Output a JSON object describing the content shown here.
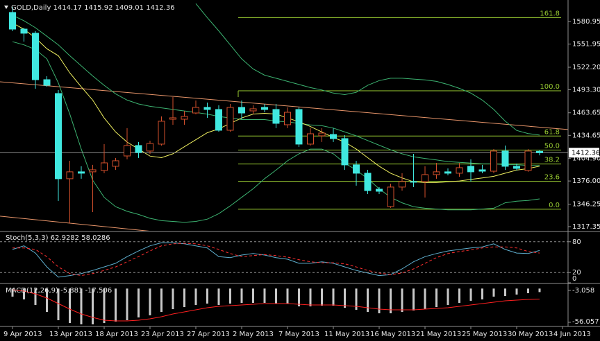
{
  "chart_data": [
    {
      "type": "candlestick",
      "title": "GOLD,Daily",
      "categories": [
        "9 Apr 2013",
        null,
        null,
        null,
        "13 Apr 2013",
        null,
        null,
        null,
        "18 Apr 2013",
        null,
        null,
        null,
        "23 Apr 2013",
        null,
        null,
        null,
        "27 Apr 2013",
        null,
        null,
        null,
        "2 May 2013",
        null,
        null,
        null,
        "7 May 2013",
        null,
        null,
        null,
        "11 May 2013",
        null,
        null,
        null,
        "16 May 2013",
        null,
        null,
        null,
        "21 May 2013",
        null,
        null,
        null,
        "25 May 2013",
        null,
        null,
        null,
        "30 May 2013",
        null,
        null,
        null,
        "4 Jun 2013"
      ],
      "open": [
        1592.6,
        1571.2,
        1565.9,
        1506.2,
        1488.4,
        1378.9,
        1387.8,
        1387.8,
        1389.5,
        1394.9,
        1408.2,
        1421.6,
        1414.5,
        1423.4,
        1455.4,
        1455.4,
        1463.4,
        1470.6,
        1467.9,
        1441.2,
        1470.6,
        1466.1,
        1470.6,
        1467.9,
        1448.3,
        1467.9,
        1423.4,
        1434.1,
        1435.8,
        1430.5,
        1396.7,
        1386.0,
        1365.5,
        1343.2,
        1368.2,
        1375.3,
        1375.3,
        1384.2,
        1387.8,
        1386.0,
        1394.9,
        1390.4,
        1388.6,
        1414.5,
        1394.9,
        1389.5,
        1414.17,
        null,
        null
      ],
      "high": [
        1599.7,
        1573.0,
        1568.5,
        1510.6,
        1492.8,
        1402.0,
        1394.9,
        1396.7,
        1423.4,
        1405.6,
        1443.9,
        1426.1,
        1427.8,
        1459.0,
        1483.9,
        1466.1,
        1479.5,
        1476.8,
        1473.2,
        1475.0,
        1479.5,
        1473.2,
        1475.0,
        1475.0,
        1470.6,
        1470.6,
        1443.9,
        1443.9,
        1443.9,
        1434.9,
        1402.0,
        1390.4,
        1368.2,
        1372.6,
        1386.0,
        1410.9,
        1394.9,
        1399.3,
        1392.2,
        1399.3,
        1403.8,
        1396.7,
        1417.1,
        1421.6,
        1398.4,
        1417.1,
        1415.92,
        null,
        null
      ],
      "low": [
        1568.5,
        1555.2,
        1494.6,
        1497.3,
        1350.4,
        1321.9,
        1378.9,
        1336.1,
        1386.0,
        1390.4,
        1403.8,
        1405.6,
        1410.9,
        1421.6,
        1448.3,
        1448.3,
        1461.7,
        1457.2,
        1439.4,
        1439.4,
        1455.4,
        1461.7,
        1464.3,
        1443.9,
        1443.9,
        1419.8,
        1421.6,
        1426.1,
        1426.1,
        1390.4,
        1370.0,
        1359.2,
        1359.2,
        1341.5,
        1363.7,
        1368.2,
        1354.8,
        1378.9,
        1383.3,
        1381.5,
        1375.3,
        1386.0,
        1386.0,
        1390.4,
        1389.5,
        1387.8,
        1409.01,
        null,
        null
      ],
      "close": [
        1571.2,
        1565.9,
        1506.2,
        1499.1,
        1378.9,
        1387.8,
        1386.0,
        1390.4,
        1399.3,
        1402.0,
        1421.6,
        1412.7,
        1424.3,
        1452.8,
        1457.2,
        1459.0,
        1470.6,
        1467.9,
        1441.2,
        1470.6,
        1463.4,
        1468.8,
        1467.9,
        1450.1,
        1464.3,
        1423.4,
        1436.7,
        1437.6,
        1430.5,
        1396.7,
        1386.0,
        1363.7,
        1362.8,
        1368.2,
        1375.3,
        1374.4,
        1384.2,
        1387.8,
        1386.0,
        1393.1,
        1387.8,
        1388.6,
        1414.5,
        1394.9,
        1392.2,
        1414.5,
        1412.36,
        null,
        null
      ],
      "up_color": "#d4502c",
      "down_color": "#40e8e0",
      "series": [
        {
          "color": "#3cb371",
          "values": [
            null,
            null,
            null,
            null,
            null,
            null,
            null,
            null,
            null,
            null,
            null,
            null,
            null,
            null,
            null,
            null,
            1604,
            1586,
            1569,
            1551,
            1533,
            1520,
            1512,
            1508,
            1504,
            1500,
            1496,
            1493,
            1489,
            1487,
            1490,
            1499,
            1505,
            1508,
            1508,
            1507,
            1506,
            1504,
            1500,
            1495,
            1489,
            1480,
            1468,
            1453,
            1441,
            1437,
            1435,
            null,
            null
          ]
        },
        {
          "color": "#3cb371",
          "values": [
            1589,
            1582,
            1573,
            1562,
            1551,
            1537,
            1524,
            1511,
            1499,
            1488,
            1480,
            1475,
            1472,
            1470,
            1468,
            1466,
            1464,
            1462,
            1459,
            1457,
            1455,
            1455,
            1455,
            1453,
            1452,
            1450,
            1448,
            1447,
            1444,
            1439,
            1434,
            1428,
            1422,
            1416,
            1411,
            1407,
            1405,
            1403,
            1401,
            1400,
            1399,
            1398,
            1398,
            1397,
            1397,
            1396,
            1396,
            null,
            null
          ]
        },
        {
          "color": "#3cb371",
          "values": [
            1555,
            1551,
            1545,
            1533,
            1502,
            1462,
            1417,
            1377,
            1355,
            1343,
            1337,
            1333,
            1328,
            1325,
            1324,
            1323,
            1324,
            1327,
            1334,
            1344,
            1355,
            1366,
            1379,
            1390,
            1402,
            1411,
            1417,
            1417,
            1411,
            1399,
            1390,
            1379,
            1366,
            1355,
            1348,
            1343,
            1341,
            1340,
            1339,
            1339,
            1339,
            1340,
            1341,
            1348,
            1350,
            1351,
            1353,
            null,
            null
          ]
        },
        {
          "color": "#f0f060",
          "values": [
            1579,
            1571,
            1560,
            1546,
            1537,
            1515,
            1497,
            1480,
            1457,
            1439,
            1426,
            1417,
            1408,
            1406,
            1411,
            1420,
            1429,
            1438,
            1443,
            1450,
            1457,
            1462,
            1463,
            1462,
            1457,
            1452,
            1446,
            1439,
            1432,
            1426,
            1417,
            1406,
            1395,
            1386,
            1380,
            1375,
            1374,
            1374,
            1375,
            1376,
            1378,
            1380,
            1382,
            1386,
            1390,
            1392,
            1395,
            null,
            null
          ]
        }
      ],
      "trendlines": [
        {
          "color": "#e8956a",
          "values": [
            1503.5,
            1442.1
          ]
        },
        {
          "color": "#e8956a",
          "values": [
            1330.8,
            1257.6
          ]
        }
      ],
      "fibo": {
        "color": "#9acd32",
        "low": 1339.7,
        "high": 1491.9,
        "levels": [
          161.8,
          {
            "value": 100,
            "label": "100.0"
          },
          61.8,
          {
            "value": 50,
            "label": "50.0"
          },
          38.2,
          23.6,
          {
            "value": 0,
            "label": "0.0"
          }
        ]
      },
      "ylim": [
        1312,
        1608.6
      ],
      "yticks": [
        1580.95,
        1551.95,
        {
          "value": 1522.2,
          "label": "1522.20"
        },
        {
          "value": 1493.3,
          "label": "1493.30"
        },
        1463.65,
        1434.65,
        {
          "value": 1404.9,
          "label": "1404.90"
        },
        {
          "value": 1376,
          "label": "1376.00"
        },
        1346.25,
        1317.35
      ]
    },
    {
      "type": "line",
      "title": "Stoch(5,3,3)",
      "series": [
        {
          "color": "#5fb0d0",
          "values": [
            65,
            72,
            58,
            31,
            11,
            14,
            18,
            24,
            31,
            38,
            51,
            62,
            72,
            78,
            78,
            76,
            72,
            68,
            51,
            49,
            54,
            57,
            54,
            49,
            46,
            38,
            38,
            41,
            38,
            31,
            24,
            19,
            14,
            16,
            27,
            41,
            51,
            57,
            62,
            65,
            68,
            70,
            76,
            65,
            58,
            57,
            62.9282
          ]
        },
        {
          "color": "#ff3030",
          "dashed": true,
          "values": [
            68,
            68,
            65,
            51,
            31,
            18,
            14,
            18,
            24,
            31,
            41,
            51,
            62,
            72,
            76,
            77,
            76,
            72,
            65,
            57,
            51,
            53,
            55,
            53,
            50,
            45,
            41,
            39,
            39,
            37,
            31,
            24,
            19,
            16,
            19,
            27,
            38,
            49,
            57,
            61,
            64,
            68,
            70,
            70,
            68,
            61,
            58.0286
          ]
        }
      ],
      "ylim": [
        0,
        100
      ],
      "yticks": [
        80,
        20,
        0
      ]
    },
    {
      "type": "macd",
      "title": "MACD(12,26,9)",
      "values": [
        -13.4,
        -18.0,
        -27.2,
        -38.8,
        -52.6,
        -57.2,
        -59.5,
        -59.5,
        -57.2,
        -54.9,
        -52.6,
        -48.0,
        -44.5,
        -38.8,
        -34.2,
        -30.7,
        -27.2,
        -25.0,
        -27.2,
        -25.0,
        -23.8,
        -23.8,
        -23.8,
        -25.0,
        -25.0,
        -29.6,
        -29.6,
        -28.4,
        -28.4,
        -31.9,
        -35.3,
        -38.8,
        -41.1,
        -41.1,
        -38.8,
        -36.5,
        -34.2,
        -30.7,
        -27.2,
        -23.8,
        -20.3,
        -18.0,
        -13.4,
        -12.3,
        -10.0,
        -7.7,
        -5.881
      ],
      "color": "#c8c8c8",
      "signal": {
        "color": "#ff2020",
        "values": [
          -1.9,
          -4.2,
          -8.8,
          -15.7,
          -25.0,
          -34.2,
          -42.2,
          -48.0,
          -52.6,
          -53.7,
          -53.7,
          -52.6,
          -50.3,
          -46.8,
          -42.2,
          -38.8,
          -35.3,
          -31.9,
          -29.6,
          -28.4,
          -27.2,
          -26.1,
          -25.0,
          -25.0,
          -25.0,
          -26.1,
          -27.2,
          -27.2,
          -27.2,
          -28.4,
          -29.6,
          -31.9,
          -34.2,
          -35.3,
          -35.3,
          -35.3,
          -34.2,
          -33.0,
          -31.9,
          -29.6,
          -27.2,
          -25.0,
          -22.6,
          -20.3,
          -19.2,
          -18.0,
          -17.506
        ]
      },
      "ylim": [
        -61.8,
        7.3
      ],
      "yticks": [
        -3.058,
        -56.057
      ]
    }
  ]
}
